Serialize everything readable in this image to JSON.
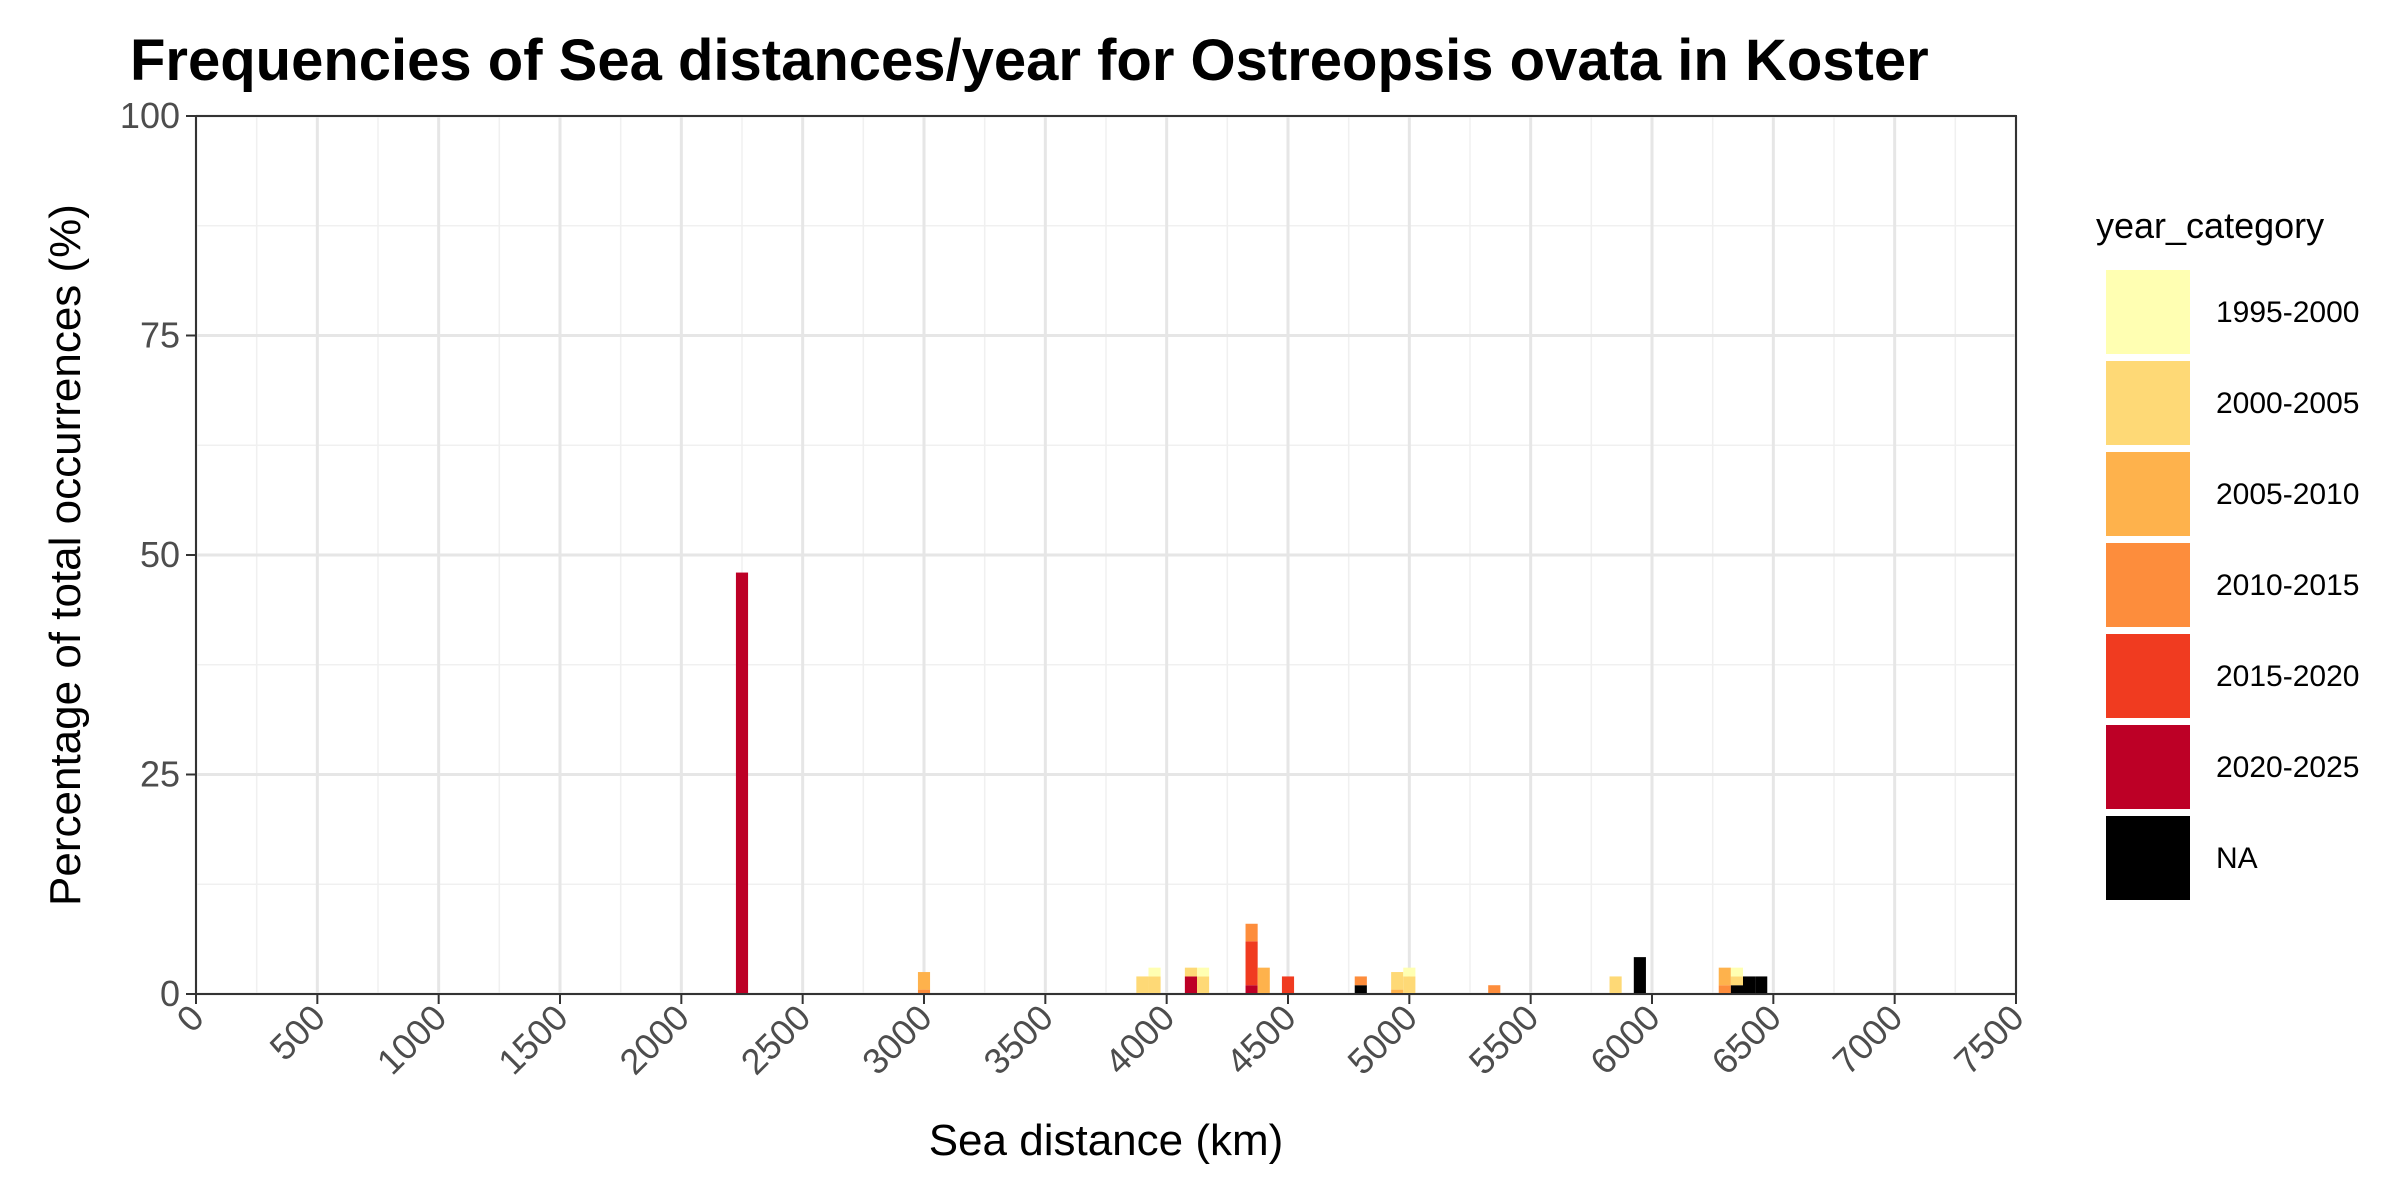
{
  "chart_data": {
    "type": "bar",
    "stacked": true,
    "title": "Frequencies of Sea distances/year for Ostreopsis ovata in Koster",
    "xlabel": "Sea distance (km)",
    "ylabel": "Percentage of total occurrences (%)",
    "xlim": [
      0,
      7500
    ],
    "ylim": [
      0,
      100
    ],
    "bin_width": 50,
    "x_ticks": [
      "0",
      "500",
      "1000",
      "1500",
      "2000",
      "2500",
      "3000",
      "3500",
      "4000",
      "4500",
      "5000",
      "5500",
      "6000",
      "6500",
      "7000",
      "7500"
    ],
    "y_ticks": [
      "0",
      "25",
      "50",
      "75",
      "100"
    ],
    "grid": true,
    "legend": {
      "title": "year_category",
      "position": "right",
      "items": [
        {
          "label": "1995-2000",
          "color": "#FFFFB2"
        },
        {
          "label": "2000-2005",
          "color": "#FED976"
        },
        {
          "label": "2005-2010",
          "color": "#FEB24C"
        },
        {
          "label": "2010-2015",
          "color": "#FD8D3C"
        },
        {
          "label": "2015-2020",
          "color": "#F03B20"
        },
        {
          "label": "2020-2025",
          "color": "#BD0026"
        },
        {
          "label": "NA",
          "color": "#000000"
        }
      ]
    },
    "series": [
      {
        "name": "1995-2000",
        "points": [
          [
            3950,
            1.0
          ],
          [
            4150,
            1.0
          ],
          [
            5000,
            1.0
          ],
          [
            6350,
            1.0
          ]
        ]
      },
      {
        "name": "2000-2005",
        "points": [
          [
            3900,
            2.0
          ],
          [
            3950,
            2.0
          ],
          [
            4100,
            1.0
          ],
          [
            4150,
            2.0
          ],
          [
            4950,
            2.0
          ],
          [
            5000,
            2.0
          ],
          [
            5850,
            2.0
          ],
          [
            6350,
            1.0
          ]
        ]
      },
      {
        "name": "2005-2010",
        "points": [
          [
            3000,
            2.0
          ],
          [
            4400,
            3.0
          ],
          [
            4950,
            0.5
          ],
          [
            6300,
            2.0
          ]
        ]
      },
      {
        "name": "2010-2015",
        "points": [
          [
            3000,
            0.5
          ],
          [
            4350,
            2.0
          ],
          [
            4800,
            1.0
          ],
          [
            5350,
            1.0
          ],
          [
            6300,
            1.0
          ]
        ]
      },
      {
        "name": "2015-2020",
        "points": [
          [
            4350,
            5.0
          ],
          [
            4500,
            2.0
          ]
        ]
      },
      {
        "name": "2020-2025",
        "points": [
          [
            2250,
            48.0
          ],
          [
            4100,
            2.0
          ],
          [
            4350,
            1.0
          ]
        ]
      },
      {
        "name": "NA",
        "points": [
          [
            4800,
            1.0
          ],
          [
            5950,
            4.2
          ],
          [
            6350,
            1.0
          ],
          [
            6400,
            2.0
          ],
          [
            6450,
            2.0
          ]
        ]
      }
    ]
  }
}
